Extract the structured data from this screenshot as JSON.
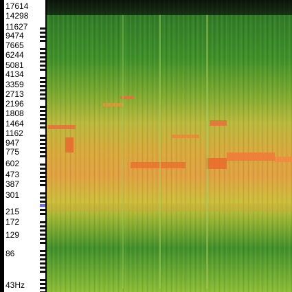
{
  "frequency_axis": {
    "labels": [
      "17614",
      "14298",
      "11627",
      "9474",
      "7665",
      "6244",
      "5081",
      "4134",
      "3359",
      "2713",
      "2196",
      "1808",
      "1464",
      "1162",
      "947",
      "775",
      "602",
      "473",
      "387",
      "301",
      "215",
      "172",
      "129",
      "86",
      "43Hz"
    ]
  }
}
